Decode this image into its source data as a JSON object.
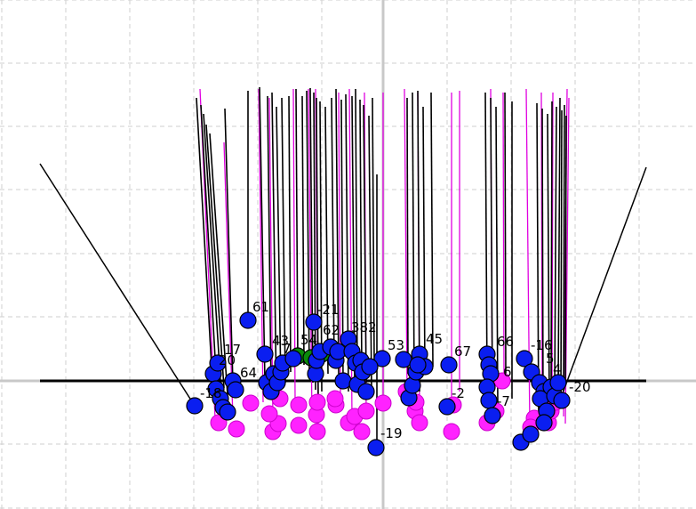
{
  "colors": {
    "background": "#ffffff",
    "grid": "#cfcfcf",
    "axis": "#c8c8c8",
    "baseline": "#000000",
    "stick_black": "#000000",
    "stick_magenta": "#e000e0",
    "point_blue": "#0a1ef0",
    "point_magenta": "#ff22ff",
    "point_green": "#0a8a0a",
    "point_stroke": "#000000"
  },
  "labels": {
    "l61": "61",
    "l21": "-21",
    "l62": "62",
    "l382": "382",
    "l17": "17",
    "l20a": "20",
    "l64": "64",
    "l18": "-18",
    "l43": "43",
    "l7": "7",
    "l54": "54",
    "l53": "53",
    "l45": "45",
    "l67": "67",
    "l66": "66",
    "l16": "-16",
    "l5": "5",
    "l6": "6",
    "l2": "-2",
    "l7n": "-7",
    "l19": "-19",
    "l20n": "-20",
    "l4": "4"
  },
  "icons": [
    "grid-lines",
    "circle-marker"
  ]
}
